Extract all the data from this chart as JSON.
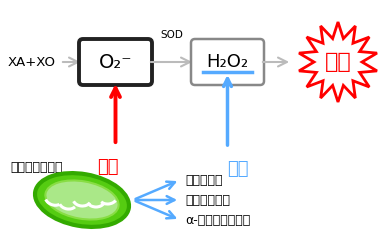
{
  "bg_color": "#ffffff",
  "xa_xo_text": "XA+XO",
  "o2_text": "O₂⁻",
  "h2o2_text": "H₂O₂",
  "sod_text": "SOD",
  "toxicity_text": "毒性",
  "hassei_text": "発生",
  "shogo_text": "消去",
  "mito_text": "ミトコンドリア",
  "acid1_text": "ピルビン酸",
  "acid2_text": "オキサロ酢酸",
  "acid3_text": "α-ケトグルタル酸",
  "red": "#ff0000",
  "blue": "#55aaff",
  "black": "#000000",
  "gray_arrow": "#bbbbbb",
  "box1_edge": "#222222",
  "box2_edge": "#888888",
  "mito_dark": "#33aa00",
  "mito_mid": "#55cc11",
  "mito_light": "#88dd44",
  "mito_pale": "#aae888"
}
